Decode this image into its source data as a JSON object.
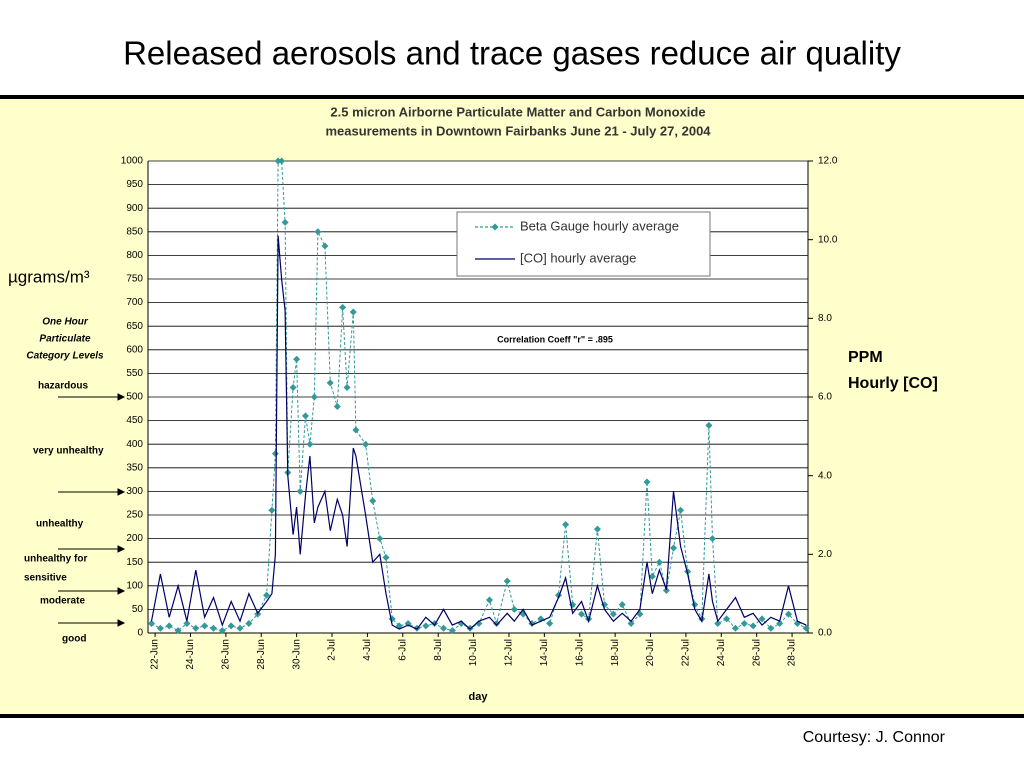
{
  "page_title": "Released aerosols and trace gases reduce air quality",
  "courtesy": "Courtesy: J. Connor",
  "chart_data": {
    "type": "line",
    "title": [
      "2.5 micron Airborne Particulate Matter and Carbon Monoxide",
      "measurements in Downtown Fairbanks   June 21 - July 27, 2004"
    ],
    "y_label": "µgrams/m³",
    "y2_label": [
      "PPM",
      "Hourly [CO]"
    ],
    "x_label": "day",
    "annotation": "Correlation Coeff \"r\" = .895",
    "category_heading": [
      "One Hour",
      "Particulate",
      "Category Levels"
    ],
    "category_levels": [
      "hazardous",
      "very unhealthy",
      "unhealthy",
      [
        "unhealthy for",
        "sensitive"
      ],
      "moderate",
      "good"
    ],
    "x": [
      21.8,
      22.3,
      22.8,
      23.3,
      23.8,
      24.3,
      24.8,
      25.3,
      25.8,
      26.3,
      26.8,
      27.3,
      27.8,
      28.3,
      28.6,
      28.8,
      28.95,
      29.15,
      29.35,
      29.5,
      29.8,
      30.0,
      30.2,
      30.5,
      30.75,
      31.0,
      31.2,
      31.6,
      31.9,
      32.3,
      32.6,
      32.85,
      33.2,
      33.35,
      33.9,
      34.3,
      34.7,
      35.05,
      35.4,
      35.8,
      36.3,
      36.8,
      37.3,
      37.8,
      38.3,
      38.8,
      39.3,
      39.8,
      40.3,
      40.9,
      41.3,
      41.9,
      42.3,
      42.8,
      43.3,
      43.8,
      44.3,
      44.8,
      45.2,
      45.6,
      46.1,
      46.5,
      47.0,
      47.4,
      47.9,
      48.4,
      48.9,
      49.4,
      49.8,
      50.1,
      50.5,
      50.9,
      51.3,
      51.7,
      52.1,
      52.5,
      52.9,
      53.3,
      53.5,
      53.8,
      54.3,
      54.8,
      55.3,
      55.8,
      56.3,
      56.8,
      57.3,
      57.8,
      58.3,
      58.8
    ],
    "xlim": [
      21.6,
      58.9
    ],
    "xticks": [
      {
        "value": 22,
        "label": "22-Jun"
      },
      {
        "value": 24,
        "label": "24-Jun"
      },
      {
        "value": 26,
        "label": "26-Jun"
      },
      {
        "value": 28,
        "label": "28-Jun"
      },
      {
        "value": 30,
        "label": "30-Jun"
      },
      {
        "value": 32,
        "label": "2-Jul"
      },
      {
        "value": 34,
        "label": "4-Jul"
      },
      {
        "value": 36,
        "label": "6-Jul"
      },
      {
        "value": 38,
        "label": "8-Jul"
      },
      {
        "value": 40,
        "label": "10-Jul"
      },
      {
        "value": 42,
        "label": "12-Jul"
      },
      {
        "value": 44,
        "label": "14-Jul"
      },
      {
        "value": 46,
        "label": "16-Jul"
      },
      {
        "value": 48,
        "label": "18-Jul"
      },
      {
        "value": 50,
        "label": "20-Jul"
      },
      {
        "value": 52,
        "label": "22-Jul"
      },
      {
        "value": 54,
        "label": "24-Jul"
      },
      {
        "value": 56,
        "label": "26-Jul"
      },
      {
        "value": 58,
        "label": "28-Jul"
      }
    ],
    "ylim": [
      0,
      1000
    ],
    "yticks": [
      0,
      50,
      100,
      150,
      200,
      250,
      300,
      350,
      400,
      450,
      500,
      550,
      600,
      650,
      700,
      750,
      800,
      850,
      900,
      950,
      1000
    ],
    "y2lim": [
      0,
      12
    ],
    "y2ticks": [
      {
        "value": 0,
        "label": "0.0"
      },
      {
        "value": 2,
        "label": "2.0"
      },
      {
        "value": 4,
        "label": "4.0"
      },
      {
        "value": 6,
        "label": "6.0"
      },
      {
        "value": 8,
        "label": "8.0"
      },
      {
        "value": 10,
        "label": "10.0"
      },
      {
        "value": 12,
        "label": "12.0"
      }
    ],
    "grid": true,
    "legend": "upper right",
    "series": [
      {
        "name": "Beta Gauge hourly average",
        "color": "#339999",
        "marker": "diamond",
        "linestyle": "dashed",
        "values": [
          20,
          10,
          15,
          5,
          20,
          10,
          15,
          10,
          5,
          15,
          10,
          20,
          40,
          80,
          260,
          380,
          1000,
          1000,
          870,
          340,
          520,
          580,
          300,
          460,
          400,
          500,
          850,
          820,
          530,
          480,
          690,
          520,
          680,
          430,
          400,
          280,
          200,
          160,
          30,
          15,
          20,
          10,
          15,
          20,
          10,
          5,
          20,
          10,
          20,
          70,
          20,
          110,
          50,
          40,
          20,
          30,
          20,
          80,
          230,
          60,
          40,
          30,
          220,
          60,
          40,
          60,
          20,
          40,
          320,
          120,
          150,
          90,
          180,
          260,
          130,
          60,
          30,
          440,
          200,
          20,
          30,
          10,
          20,
          15,
          30,
          10,
          20,
          40,
          20,
          10
        ]
      },
      {
        "name": "[CO] hourly average",
        "color": "#000066",
        "axis": "y2",
        "linestyle": "solid",
        "values": [
          0.3,
          1.5,
          0.4,
          1.2,
          0.3,
          1.6,
          0.4,
          0.9,
          0.2,
          0.8,
          0.3,
          1.0,
          0.5,
          0.8,
          1.0,
          2.0,
          10.1,
          9.0,
          8.2,
          4.0,
          2.5,
          3.2,
          2.0,
          3.5,
          4.5,
          2.8,
          3.2,
          3.6,
          2.6,
          3.4,
          3.0,
          2.2,
          4.7,
          4.5,
          3.0,
          1.8,
          2.0,
          1.0,
          0.2,
          0.1,
          0.2,
          0.1,
          0.4,
          0.2,
          0.6,
          0.2,
          0.3,
          0.1,
          0.3,
          0.4,
          0.2,
          0.5,
          0.3,
          0.6,
          0.2,
          0.3,
          0.4,
          0.9,
          1.4,
          0.5,
          0.8,
          0.3,
          1.2,
          0.6,
          0.3,
          0.5,
          0.3,
          0.6,
          1.8,
          1.0,
          1.6,
          1.1,
          3.6,
          2.2,
          1.5,
          0.6,
          0.3,
          1.5,
          0.8,
          0.3,
          0.6,
          0.9,
          0.4,
          0.5,
          0.2,
          0.4,
          0.3,
          1.2,
          0.3,
          0.2
        ]
      }
    ]
  }
}
